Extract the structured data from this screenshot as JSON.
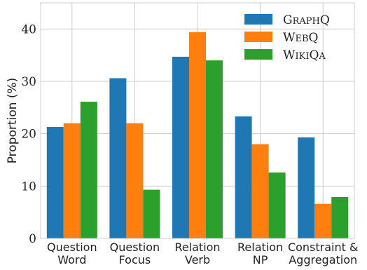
{
  "chart_data": {
    "type": "bar",
    "categories": [
      [
        "Question",
        "Word"
      ],
      [
        "Question",
        "Focus"
      ],
      [
        "Relation",
        "Verb"
      ],
      [
        "Relation",
        "NP"
      ],
      [
        "Constraint &",
        "Aggregation"
      ]
    ],
    "series": [
      {
        "name": "GraphQ",
        "color": "#1f77b4",
        "values": [
          21.3,
          30.6,
          34.7,
          23.3,
          19.3
        ]
      },
      {
        "name": "WebQ",
        "color": "#ff7f0e",
        "values": [
          22.0,
          22.0,
          39.4,
          18.0,
          6.6
        ]
      },
      {
        "name": "WikiQA",
        "color": "#2ca02c",
        "values": [
          26.1,
          9.3,
          34.0,
          12.6,
          7.9
        ]
      }
    ],
    "xlabel": "",
    "ylabel": "Proportion (%)",
    "ylim": [
      0,
      45
    ],
    "yticks": [
      0,
      10,
      20,
      30,
      40
    ],
    "grid": true,
    "legend_position": "top-right"
  }
}
